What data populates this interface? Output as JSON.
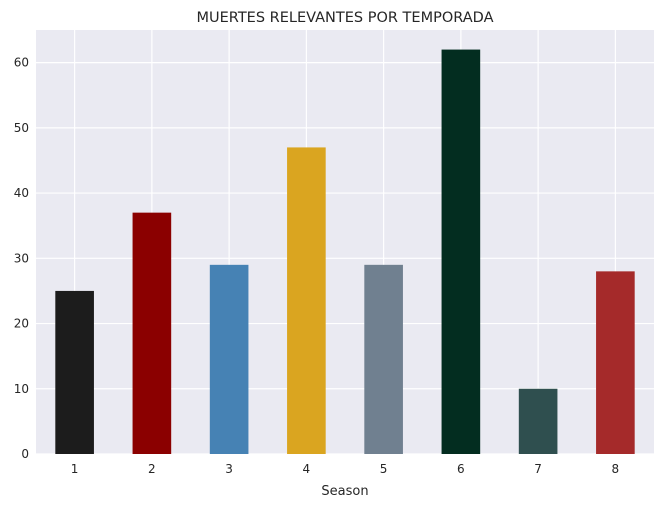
{
  "chart_data": {
    "type": "bar",
    "title": "MUERTES RELEVANTES POR TEMPORADA",
    "xlabel": "Season",
    "ylabel": "",
    "categories": [
      "1",
      "2",
      "3",
      "4",
      "5",
      "6",
      "7",
      "8"
    ],
    "values": [
      25,
      37,
      29,
      47,
      29,
      62,
      10,
      28
    ],
    "colors": [
      "#1c1c1c",
      "#8b0000",
      "#4682b4",
      "#daa520",
      "#708090",
      "#032d20",
      "#2f4f4f",
      "#a52a2a"
    ],
    "ylim": [
      0,
      65
    ],
    "yticks": [
      0,
      10,
      20,
      30,
      40,
      50,
      60
    ],
    "grid": true,
    "legend": "none",
    "background": "#eaeaf2"
  }
}
